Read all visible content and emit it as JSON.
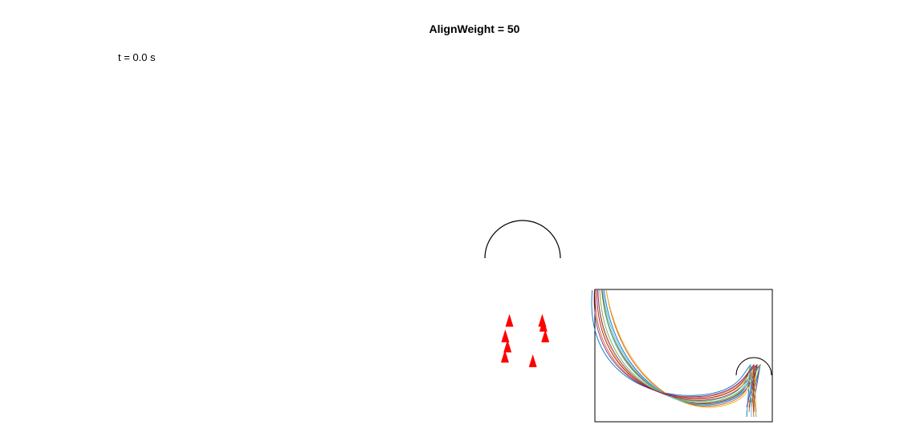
{
  "chart_data": [
    {
      "type": "scatter",
      "title": "AlignWeight = 50",
      "time_label": "t = 0.0 s",
      "grid": false,
      "axes_visible": false,
      "obstacle_arc": {
        "center": [
          0,
          0
        ],
        "radius": 1,
        "start_deg": 0,
        "end_deg": 180,
        "color": "#000000"
      },
      "agents": {
        "marker": "triangle-up",
        "color": "#ff0000",
        "points": [
          {
            "x": -0.35,
            "y": -1.65
          },
          {
            "x": 0.52,
            "y": -1.65
          },
          {
            "x": 0.55,
            "y": -1.78
          },
          {
            "x": -0.46,
            "y": -2.06
          },
          {
            "x": 0.6,
            "y": -2.06
          },
          {
            "x": -0.4,
            "y": -2.33
          },
          {
            "x": -0.47,
            "y": -2.6
          },
          {
            "x": 0.27,
            "y": -2.72
          }
        ]
      }
    },
    {
      "type": "line",
      "name": "inset-trajectories",
      "box": true,
      "arc_color": "#000000",
      "series_colors": [
        "#0072bd",
        "#d95319",
        "#edb120",
        "#7e2f8e",
        "#77ac30",
        "#4dbeee",
        "#a2142f"
      ]
    }
  ]
}
